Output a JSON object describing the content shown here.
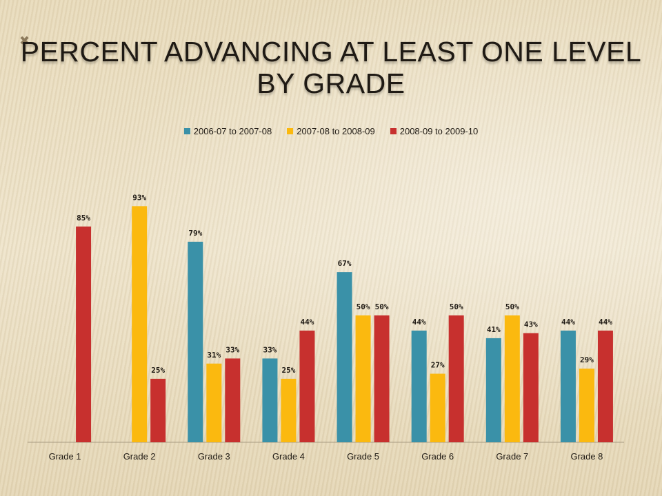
{
  "chart_data": {
    "type": "bar",
    "title_lines": [
      "PERCENT ADVANCING AT LEAST ONE LEVEL",
      "BY GRADE"
    ],
    "categories": [
      "Grade 1",
      "Grade 2",
      "Grade 3",
      "Grade 4",
      "Grade 5",
      "Grade 6",
      "Grade 7",
      "Grade 8"
    ],
    "series": [
      {
        "name": "2006-07 to 2007-08",
        "color": "#3a91a8",
        "values": [
          null,
          null,
          79,
          33,
          67,
          44,
          41,
          44
        ],
        "labels": [
          "",
          "",
          "79%",
          "33%",
          "67%",
          "44%",
          "41%",
          "44%"
        ]
      },
      {
        "name": "2007-08 to 2008-09",
        "color": "#fbb90f",
        "values": [
          null,
          93,
          31,
          25,
          50,
          27,
          50,
          29
        ],
        "labels": [
          "",
          "93%",
          "31%",
          "25%",
          "50%",
          "27%",
          "50%",
          "29%"
        ]
      },
      {
        "name": "2008-09 to 2009-10",
        "color": "#c7302e",
        "values": [
          85,
          25,
          33,
          44,
          50,
          50,
          43,
          44
        ],
        "labels": [
          "85%",
          "25%",
          "33%",
          "44%",
          "50%",
          "50%",
          "43%",
          "44%"
        ]
      }
    ],
    "ylim": [
      0,
      100
    ],
    "grid": false,
    "legend_position": "top"
  },
  "decoration": "✖"
}
